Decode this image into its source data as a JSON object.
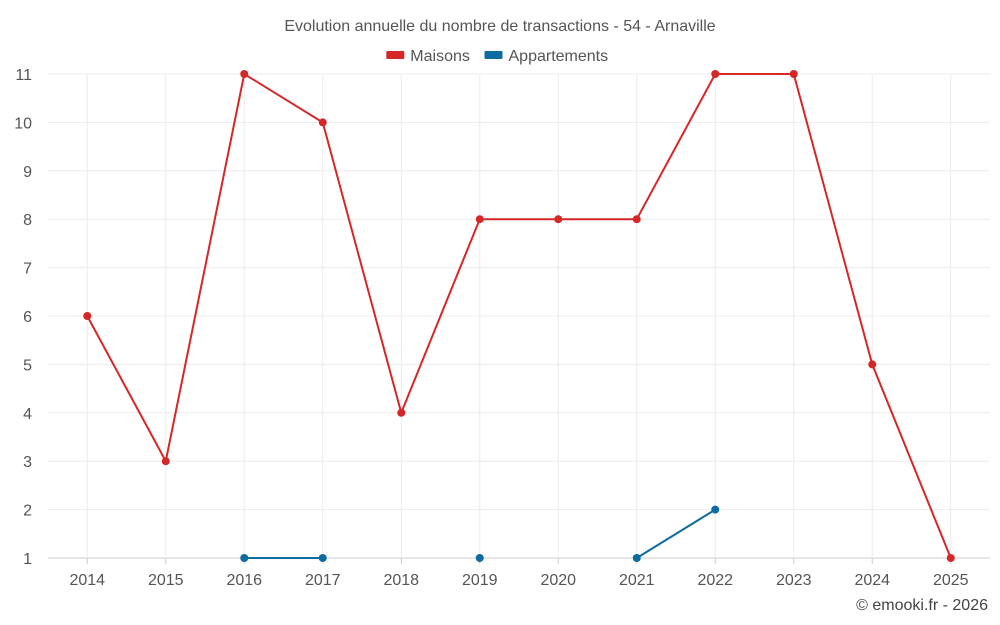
{
  "chart_data": {
    "type": "line",
    "title": "Evolution annuelle du nombre de transactions - 54 - Arnaville",
    "x": [
      "2014",
      "2015",
      "2016",
      "2017",
      "2018",
      "2019",
      "2020",
      "2021",
      "2022",
      "2023",
      "2024",
      "2025"
    ],
    "ylim": [
      1,
      11
    ],
    "yticks": [
      1,
      2,
      3,
      4,
      5,
      6,
      7,
      8,
      9,
      10,
      11
    ],
    "legend_position": "top-center",
    "series": [
      {
        "name": "Maisons",
        "color": "#d62728",
        "values": [
          6,
          3,
          11,
          10,
          4,
          8,
          8,
          8,
          11,
          11,
          5,
          1
        ]
      },
      {
        "name": "Appartements",
        "color": "#0e6ba0",
        "values": [
          null,
          null,
          1,
          1,
          null,
          1,
          null,
          1,
          2,
          null,
          null,
          null
        ]
      }
    ],
    "credit": "© emooki.fr - 2026"
  }
}
